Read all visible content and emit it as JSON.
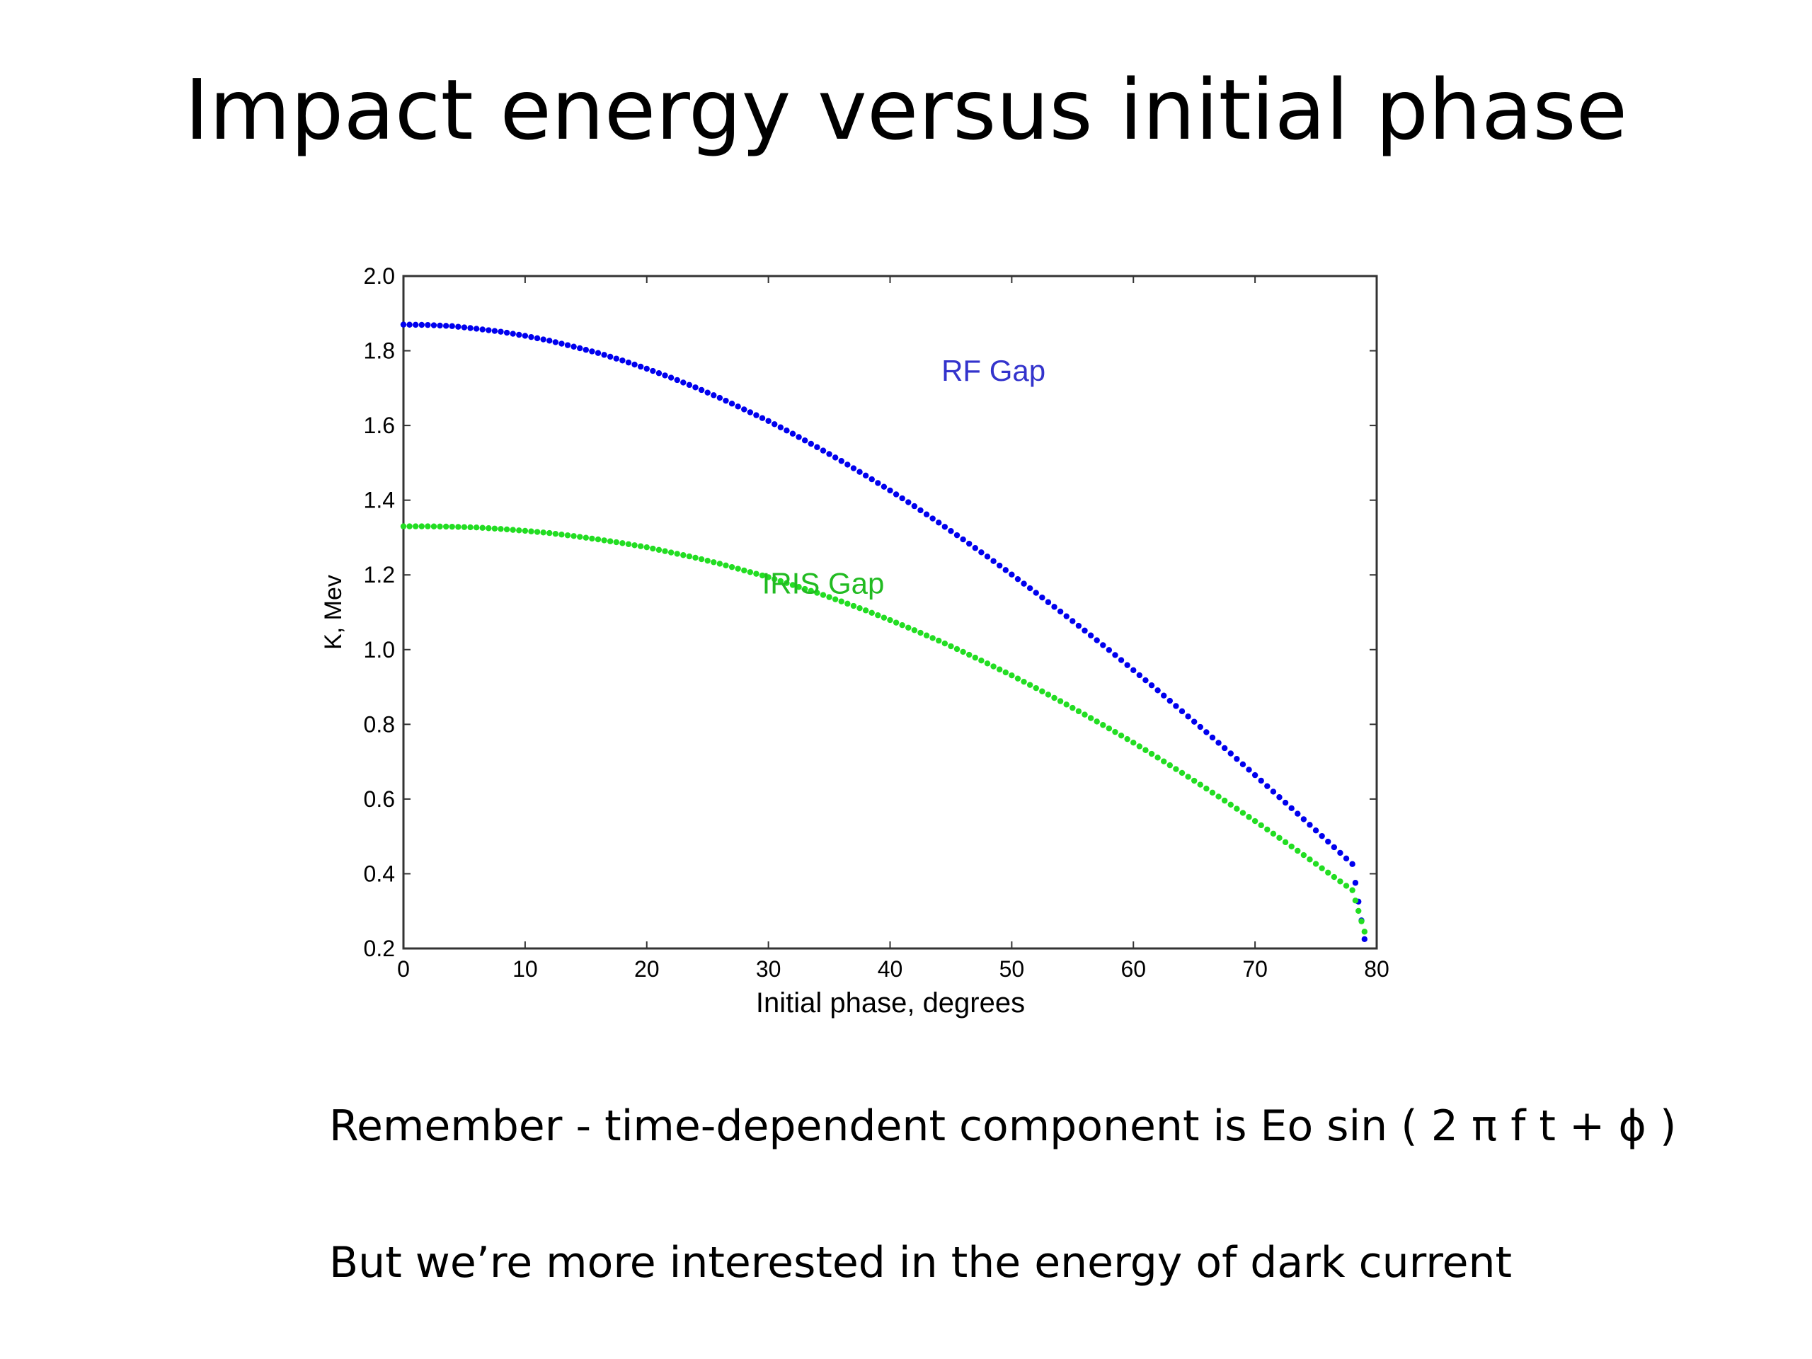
{
  "slide": {
    "title": "Impact energy versus initial phase",
    "note_1": "Remember -  time-dependent component is Eo sin ( 2 π f t + ϕ )",
    "note_2": "But we’re more interested in the energy of dark current"
  },
  "chart_data": {
    "type": "scatter",
    "title": "",
    "xlabel": "Initial phase, degrees",
    "ylabel": "K, Mev",
    "xlim": [
      0,
      80
    ],
    "ylim": [
      0.2,
      2.0
    ],
    "xticks": [
      0,
      10,
      20,
      30,
      40,
      50,
      60,
      70,
      80
    ],
    "xtick_labels": [
      "0",
      "10",
      "20",
      "30",
      "40",
      "50",
      "60",
      "70",
      "80"
    ],
    "yticks": [
      0.2,
      0.4,
      0.6,
      0.8,
      1.0,
      1.2,
      1.4,
      1.6,
      1.8,
      2.0
    ],
    "ytick_labels": [
      "0.2",
      "0.4",
      "0.6",
      "0.8",
      "1.0",
      "1.2",
      "1.4",
      "1.6",
      "1.8",
      "2.0"
    ],
    "grid": false,
    "legend": "none",
    "series": [
      {
        "name": "RF Gap",
        "color": "#0000ee",
        "x": [
          0,
          2,
          4,
          6,
          8,
          10,
          12,
          14,
          16,
          18,
          20,
          22,
          24,
          26,
          28,
          30,
          32,
          34,
          36,
          38,
          40,
          42,
          44,
          46,
          48,
          50,
          52,
          54,
          56,
          58,
          60,
          62,
          64,
          66,
          68,
          70,
          72,
          74,
          76,
          78,
          79
        ],
        "y": [
          1.87,
          1.869,
          1.866,
          1.859,
          1.851,
          1.84,
          1.827,
          1.811,
          1.794,
          1.774,
          1.752,
          1.728,
          1.702,
          1.674,
          1.643,
          1.612,
          1.578,
          1.542,
          1.505,
          1.466,
          1.426,
          1.384,
          1.34,
          1.295,
          1.249,
          1.201,
          1.152,
          1.102,
          1.051,
          0.999,
          0.945,
          0.891,
          0.835,
          0.779,
          0.722,
          0.664,
          0.605,
          0.546,
          0.486,
          0.426,
          0.225
        ]
      },
      {
        "name": "IRIS Gap",
        "color": "#22dd22",
        "x": [
          0,
          2,
          4,
          6,
          8,
          10,
          12,
          14,
          16,
          18,
          20,
          22,
          24,
          26,
          28,
          30,
          32,
          34,
          36,
          38,
          40,
          42,
          44,
          46,
          48,
          50,
          52,
          54,
          56,
          58,
          60,
          62,
          64,
          66,
          68,
          70,
          72,
          74,
          76,
          78,
          79
        ],
        "y": [
          1.33,
          1.33,
          1.329,
          1.327,
          1.323,
          1.318,
          1.312,
          1.304,
          1.295,
          1.285,
          1.274,
          1.26,
          1.246,
          1.23,
          1.212,
          1.194,
          1.173,
          1.152,
          1.129,
          1.105,
          1.079,
          1.052,
          1.024,
          0.994,
          0.963,
          0.931,
          0.897,
          0.862,
          0.826,
          0.789,
          0.751,
          0.711,
          0.67,
          0.628,
          0.585,
          0.541,
          0.496,
          0.45,
          0.403,
          0.356,
          0.245
        ]
      }
    ],
    "annotations": [
      {
        "text": "RF Gap",
        "x": 48.5,
        "y": 1.72,
        "color": "#3333cc"
      },
      {
        "text": "IRIS Gap",
        "x": 34.5,
        "y": 1.15,
        "color": "#22bb22"
      }
    ]
  }
}
